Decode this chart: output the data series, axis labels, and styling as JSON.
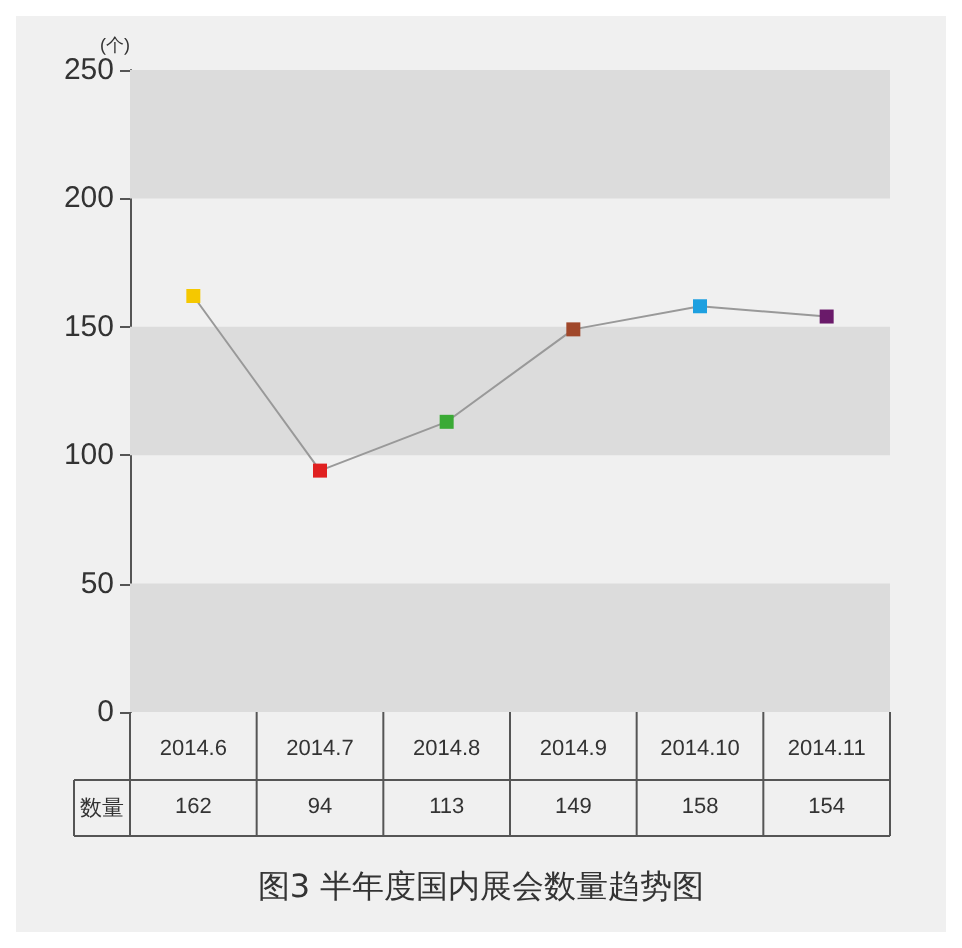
{
  "chart_data": {
    "type": "line",
    "title": "图3 半年度国内展会数量趋势图",
    "ylabel": "(个)",
    "categories": [
      "2014.6",
      "2014.7",
      "2014.8",
      "2014.9",
      "2014.10",
      "2014.11"
    ],
    "series": [
      {
        "name": "数量",
        "color": "#999999",
        "colors": [
          "#f5c800",
          "#e02020",
          "#3aaa35",
          "#a0472a",
          "#1ea0e0",
          "#6a1a6a"
        ],
        "values": [
          162,
          94,
          113,
          149,
          158,
          154
        ]
      }
    ],
    "ylim": [
      0,
      250
    ],
    "yticks": [
      0,
      50,
      100,
      150,
      200,
      250
    ],
    "bands": [
      {
        "axis": "y",
        "from": 0,
        "to": 50,
        "color": "#dcdcdc"
      },
      {
        "axis": "y",
        "from": 100,
        "to": 150,
        "color": "#dcdcdc"
      },
      {
        "axis": "y",
        "from": 200,
        "to": 250,
        "color": "#dcdcdc"
      }
    ],
    "marker": "square",
    "line_style": "solid",
    "data_labels": true,
    "grid": false,
    "legend": false
  }
}
